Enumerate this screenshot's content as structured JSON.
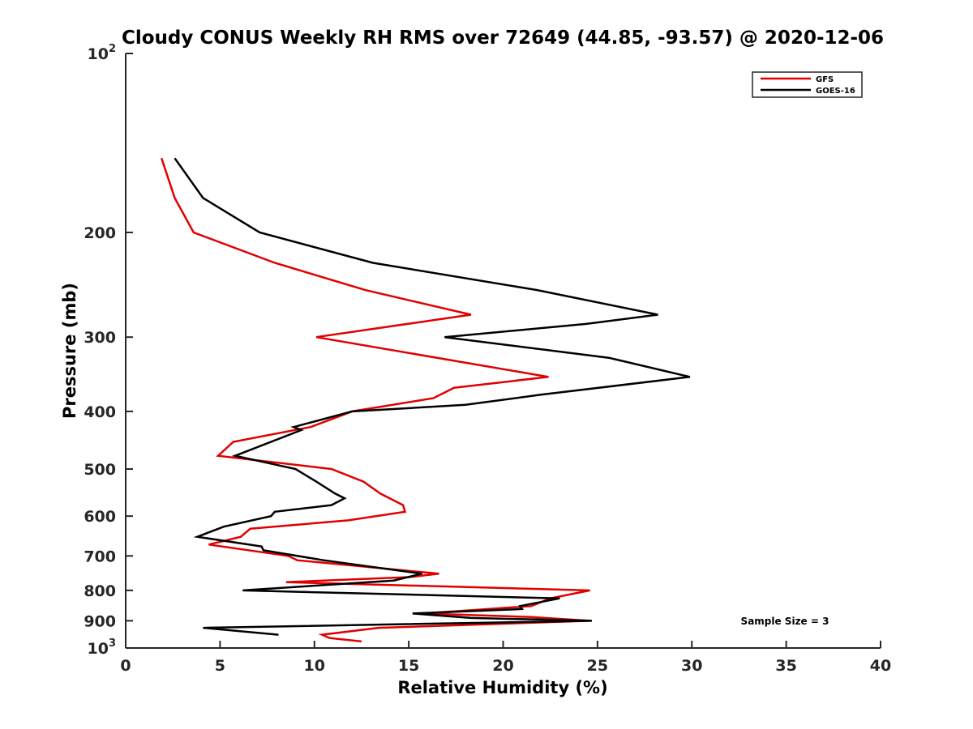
{
  "chart_data": {
    "type": "line",
    "title": "Cloudy CONUS Weekly RH RMS over 72649 (44.85, -93.57) @ 2020-12-06",
    "xlabel": "Relative Humidity (%)",
    "ylabel": "Pressure (mb)",
    "xlim": [
      0,
      40
    ],
    "ylim": [
      100,
      1000
    ],
    "y_scale": "log",
    "y_reversed": true,
    "grid": false,
    "x_ticks": [
      "0",
      "5",
      "10",
      "15",
      "20",
      "25",
      "30",
      "35",
      "40"
    ],
    "y_ticks": [
      {
        "value": 100,
        "base": "10",
        "exp": "2"
      },
      {
        "value": 200,
        "label": "200"
      },
      {
        "value": 300,
        "label": "300"
      },
      {
        "value": 400,
        "label": "400"
      },
      {
        "value": 500,
        "label": "500"
      },
      {
        "value": 600,
        "label": "600"
      },
      {
        "value": 700,
        "label": "700"
      },
      {
        "value": 800,
        "label": "800"
      },
      {
        "value": 900,
        "label": "900"
      },
      {
        "value": 1000,
        "base": "10",
        "exp": "3"
      }
    ],
    "legend_position": "top-right",
    "annotation": "Sample Size = 3",
    "series": [
      {
        "name": "GFS",
        "color": "#e00000",
        "points": [
          [
            1.9,
            150
          ],
          [
            2.6,
            175
          ],
          [
            3.6,
            200
          ],
          [
            7.9,
            225
          ],
          [
            12.7,
            250
          ],
          [
            18.3,
            275
          ],
          [
            10.1,
            300
          ],
          [
            22.4,
            350
          ],
          [
            17.4,
            365
          ],
          [
            16.3,
            380
          ],
          [
            12.0,
            400
          ],
          [
            9.8,
            425
          ],
          [
            5.7,
            450
          ],
          [
            4.9,
            475
          ],
          [
            10.9,
            500
          ],
          [
            12.6,
            525
          ],
          [
            13.5,
            550
          ],
          [
            14.7,
            575
          ],
          [
            14.8,
            590
          ],
          [
            11.8,
            610
          ],
          [
            6.6,
            630
          ],
          [
            6.1,
            650
          ],
          [
            4.4,
            670
          ],
          [
            8.6,
            700
          ],
          [
            9.1,
            712
          ],
          [
            16.6,
            750
          ],
          [
            15.0,
            760
          ],
          [
            8.5,
            775
          ],
          [
            24.6,
            800
          ],
          [
            22.5,
            825
          ],
          [
            21.5,
            850
          ],
          [
            15.8,
            875
          ],
          [
            21.5,
            887
          ],
          [
            24.6,
            900
          ],
          [
            13.4,
            925
          ],
          [
            10.4,
            950
          ],
          [
            10.8,
            962
          ],
          [
            12.5,
            975
          ]
        ]
      },
      {
        "name": "GOES-16",
        "color": "#000000",
        "points": [
          [
            2.6,
            150
          ],
          [
            4.1,
            175
          ],
          [
            7.1,
            200
          ],
          [
            13.1,
            225
          ],
          [
            21.8,
            250
          ],
          [
            28.2,
            275
          ],
          [
            24.4,
            285
          ],
          [
            16.9,
            300
          ],
          [
            25.6,
            325
          ],
          [
            29.9,
            350
          ],
          [
            22.0,
            375
          ],
          [
            18.0,
            390
          ],
          [
            12.0,
            400
          ],
          [
            8.9,
            425
          ],
          [
            9.3,
            430
          ],
          [
            5.8,
            475
          ],
          [
            9.0,
            500
          ],
          [
            10.1,
            525
          ],
          [
            11.1,
            550
          ],
          [
            11.6,
            560
          ],
          [
            10.9,
            575
          ],
          [
            7.9,
            590
          ],
          [
            7.7,
            600
          ],
          [
            5.2,
            625
          ],
          [
            3.8,
            650
          ],
          [
            7.2,
            675
          ],
          [
            7.3,
            685
          ],
          [
            10.5,
            712
          ],
          [
            15.7,
            750
          ],
          [
            14.2,
            770
          ],
          [
            6.2,
            800
          ],
          [
            23.0,
            825
          ],
          [
            20.9,
            850
          ],
          [
            21.0,
            860
          ],
          [
            15.2,
            875
          ],
          [
            18.3,
            890
          ],
          [
            24.7,
            900
          ],
          [
            4.1,
            925
          ],
          [
            8.1,
            950
          ]
        ]
      }
    ]
  }
}
